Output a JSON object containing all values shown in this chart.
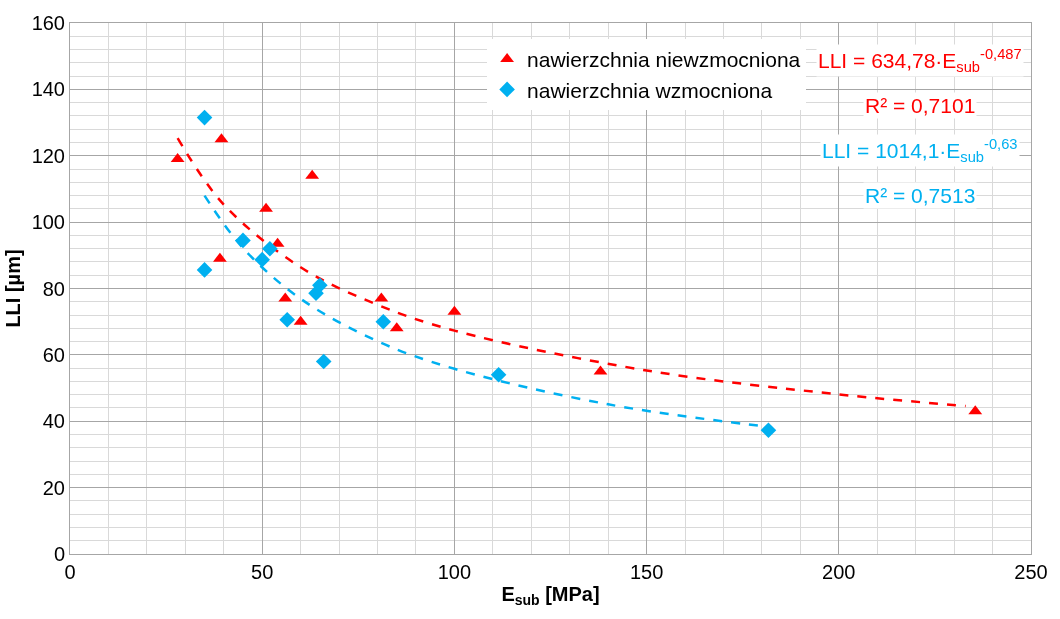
{
  "chart_data": {
    "type": "scatter",
    "xlabel": "E$_{sub}$ [MPa]",
    "ylabel": "LLI [µm]",
    "xlim": [
      0,
      250
    ],
    "xticks": [
      0,
      50,
      100,
      150,
      200,
      250
    ],
    "ylim": [
      0,
      160
    ],
    "yticks": [
      0,
      20,
      40,
      60,
      80,
      100,
      120,
      140,
      160
    ],
    "grid": true,
    "legend": "top",
    "series": [
      {
        "name": "nawierzchnia niewzmocniona",
        "color": "#ff0000",
        "marker": "triangle",
        "x": [
          28,
          39.4,
          39,
          51,
          54,
          63,
          56,
          60,
          81,
          85,
          100,
          138,
          235.5
        ],
        "values": [
          119,
          125,
          89,
          104,
          93.5,
          114,
          77,
          70,
          77,
          68,
          73,
          55,
          43
        ]
      },
      {
        "name": "nawierzchnia wzmocniona",
        "color": "#00b0f0",
        "marker": "diamond",
        "x": [
          35,
          35,
          45,
          50,
          52,
          64,
          65,
          56.5,
          66,
          81.5,
          111.5,
          181.7
        ],
        "values": [
          131.5,
          85.6,
          94.5,
          88.7,
          92,
          78.6,
          81,
          70.6,
          58,
          70,
          54,
          37.3
        ]
      },
      {
        "type": "line",
        "color": "#ff0000",
        "line_style": "dashed",
        "marker": "none",
        "x": [
          28,
          40,
          60,
          80,
          100,
          150,
          200,
          233
        ],
        "values": [
          125.3,
          105.3,
          86.4,
          75.1,
          67.3,
          55.3,
          48.1,
          44.6
        ]
      },
      {
        "type": "line",
        "color": "#00b0f0",
        "line_style": "dashed",
        "marker": "none",
        "x": [
          35,
          45,
          60,
          80,
          100,
          140,
          181
        ],
        "values": [
          108.0,
          92.2,
          76.9,
          64.1,
          55.8,
          45.1,
          38.4
        ]
      }
    ],
    "annotations": [
      "LLI = 634,78·E$_{sub}$$^{-0,487}$",
      "R² = 0,7101",
      "LLI = 1014,1·E$_{sub}$$^{-0,63}$",
      "R² = 0,7513"
    ]
  }
}
